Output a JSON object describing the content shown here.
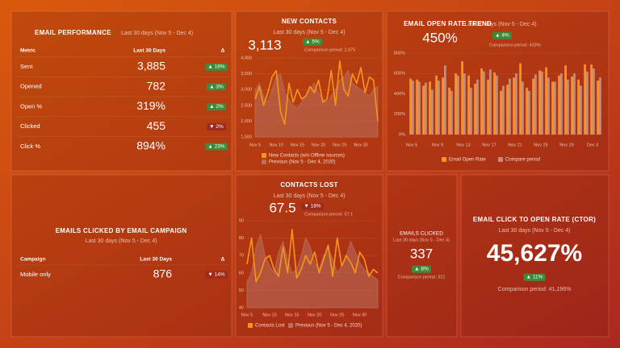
{
  "widgets": {
    "email_performance": {
      "title": "EMAIL PERFORMANCE",
      "subtitle": "Last 30 days (Nov 5 - Dec 4)",
      "columns": [
        "Metric",
        "Last 30 Days",
        "Δ"
      ],
      "rows": [
        [
          "Sent",
          "3,885",
          "▲ 16%"
        ],
        [
          "Opened",
          "782",
          "▲ 3%"
        ],
        [
          "Open %",
          "319%",
          "▲ 2%"
        ],
        [
          "Clicked",
          "455",
          "▼ 2%"
        ],
        [
          "Click %",
          "894%",
          "▲ 23%"
        ]
      ]
    },
    "emails_clicked_by_campaign": {
      "title": "EMAILS CLICKED BY EMAIL CAMPAIGN",
      "subtitle": "Last 30 days (Nov 5 - Dec 4)",
      "columns": [
        "Campaign",
        "Last 30 Days",
        "Δ"
      ],
      "rows": [
        [
          "Mobile only",
          "876",
          "▼ 14%"
        ]
      ]
    },
    "emails_clicked": {
      "title": "EMAILS CLICKED",
      "subtitle": "Last 30 days (Nov 5 - Dec 4)",
      "value": "337",
      "delta": "▲ 8%",
      "comparison": "Comparison period: 312"
    },
    "ctor": {
      "title": "EMAIL CLICK TO OPEN RATE (CTOR)",
      "subtitle": "Last 30 days (Nov 5 - Dec 4)",
      "value": "45,627%",
      "delta": "▲ 11%",
      "comparison": "Comparison period: 41,196%"
    }
  },
  "chart_data": [
    {
      "type": "line",
      "title": "NEW CONTACTS",
      "subtitle": "Last 30 days (Nov 5 - Dec 4)",
      "annotations": [
        "3,113",
        "▲ 5%",
        "Comparison period: 2,975"
      ],
      "categories": [
        "Nov 5",
        null,
        null,
        null,
        null,
        "Nov 10",
        null,
        null,
        null,
        null,
        "Nov 15",
        null,
        null,
        null,
        null,
        "Nov 20",
        null,
        null,
        null,
        null,
        "Nov 25",
        null,
        null,
        null,
        null,
        "Nov 30",
        null,
        null,
        null,
        null
      ],
      "series": [
        {
          "name": "New Contacts (w/o Offline sources)",
          "color": "#f7941d",
          "values": [
            2700,
            3100,
            2500,
            2900,
            3400,
            3600,
            2300,
            1900,
            3200,
            2600,
            3000,
            2700,
            2800,
            3100,
            2900,
            3300,
            2600,
            2700,
            3600,
            2500,
            3900,
            3000,
            2800,
            3500,
            3200,
            3700,
            2900,
            3400,
            3300,
            2000
          ]
        },
        {
          "name": "Previous (Nov 5 - Dec 4, 2020)",
          "color": "#b8705c",
          "area": true,
          "values": [
            3000,
            3200,
            2800,
            2600,
            3000,
            3400,
            3500,
            2900,
            2700,
            2500,
            2400,
            2600,
            2800,
            3000,
            3200,
            2900,
            2700,
            2600,
            2800,
            3000,
            3300,
            3400,
            3600,
            3200,
            3100,
            3000,
            2900,
            2800,
            3000,
            3100
          ]
        }
      ],
      "ylim": [
        1500,
        4000
      ],
      "yticks": [
        {
          "value": 1500,
          "label": "1,500"
        },
        {
          "value": 2000,
          "label": "2,000"
        },
        {
          "value": 2500,
          "label": "2,500"
        },
        {
          "value": 3000,
          "label": "3,000"
        },
        {
          "value": 3500,
          "label": "3,500"
        },
        {
          "value": 4000,
          "label": "4,000"
        }
      ],
      "grid": true
    },
    {
      "type": "bar",
      "title": "EMAIL OPEN RATE TREND",
      "subtitle": "Last 30 days (Nov 5 - Dec 4)",
      "annotations": [
        "450%",
        "▲ 4%",
        "Comparison period: 433%"
      ],
      "categories": [
        "Nov 5",
        null,
        null,
        null,
        "Nov 9",
        null,
        null,
        null,
        "Nov 13",
        null,
        null,
        null,
        "Nov 17",
        null,
        null,
        null,
        "Nov 21",
        null,
        null,
        null,
        "Nov 25",
        null,
        null,
        null,
        "Nov 29",
        null,
        null,
        null,
        "Dec 3",
        null
      ],
      "series": [
        {
          "name": "Email Open Rate",
          "color": "#f7941d",
          "values": [
            550,
            540,
            480,
            520,
            580,
            560,
            460,
            600,
            720,
            580,
            500,
            650,
            540,
            610,
            430,
            490,
            560,
            700,
            460,
            550,
            630,
            660,
            520,
            580,
            680,
            570,
            540,
            690,
            690,
            530
          ]
        },
        {
          "name": "Compare period",
          "color": "#c98a78",
          "values": [
            530,
            520,
            510,
            440,
            530,
            680,
            430,
            580,
            600,
            460,
            540,
            620,
            640,
            580,
            480,
            550,
            600,
            520,
            430,
            590,
            620,
            560,
            520,
            600,
            540,
            600,
            480,
            620,
            650,
            560
          ]
        }
      ],
      "ylim": [
        0,
        800
      ],
      "yticks": [
        {
          "value": 0,
          "label": "0%"
        },
        {
          "value": 200,
          "label": "200%"
        },
        {
          "value": 400,
          "label": "400%"
        },
        {
          "value": 600,
          "label": "600%"
        },
        {
          "value": 800,
          "label": "800%"
        }
      ],
      "grid": true
    },
    {
      "type": "line",
      "title": "CONTACTS LOST",
      "subtitle": "Last 30 days (Nov 5 - Dec 4)",
      "annotations": [
        "67.5",
        "▼ 18%",
        "Comparison period: 57.1"
      ],
      "categories": [
        "Nov 5",
        null,
        null,
        null,
        null,
        "Nov 10",
        null,
        null,
        null,
        null,
        "Nov 15",
        null,
        null,
        null,
        null,
        "Nov 20",
        null,
        null,
        null,
        null,
        "Nov 25",
        null,
        null,
        null,
        null,
        "Nov 30",
        null,
        null,
        null,
        null
      ],
      "series": [
        {
          "name": "Contacts Lost",
          "color": "#f7941d",
          "values": [
            65,
            80,
            55,
            60,
            68,
            70,
            62,
            58,
            75,
            60,
            85,
            57,
            62,
            70,
            65,
            72,
            60,
            68,
            76,
            58,
            80,
            64,
            70,
            66,
            60,
            72,
            68,
            58,
            62,
            60
          ]
        },
        {
          "name": "Previous (Nov 5 - Dec 4, 2020)",
          "color": "#b8705c",
          "area": true,
          "values": [
            55,
            60,
            75,
            82,
            70,
            64,
            60,
            72,
            78,
            68,
            60,
            62,
            70,
            80,
            75,
            66,
            62,
            70,
            74,
            68,
            60,
            64,
            70,
            78,
            72,
            66,
            62,
            60,
            58,
            56
          ]
        }
      ],
      "ylim": [
        40,
        90
      ],
      "yticks": [
        40,
        50,
        60,
        70,
        80,
        90
      ],
      "grid": true
    }
  ]
}
